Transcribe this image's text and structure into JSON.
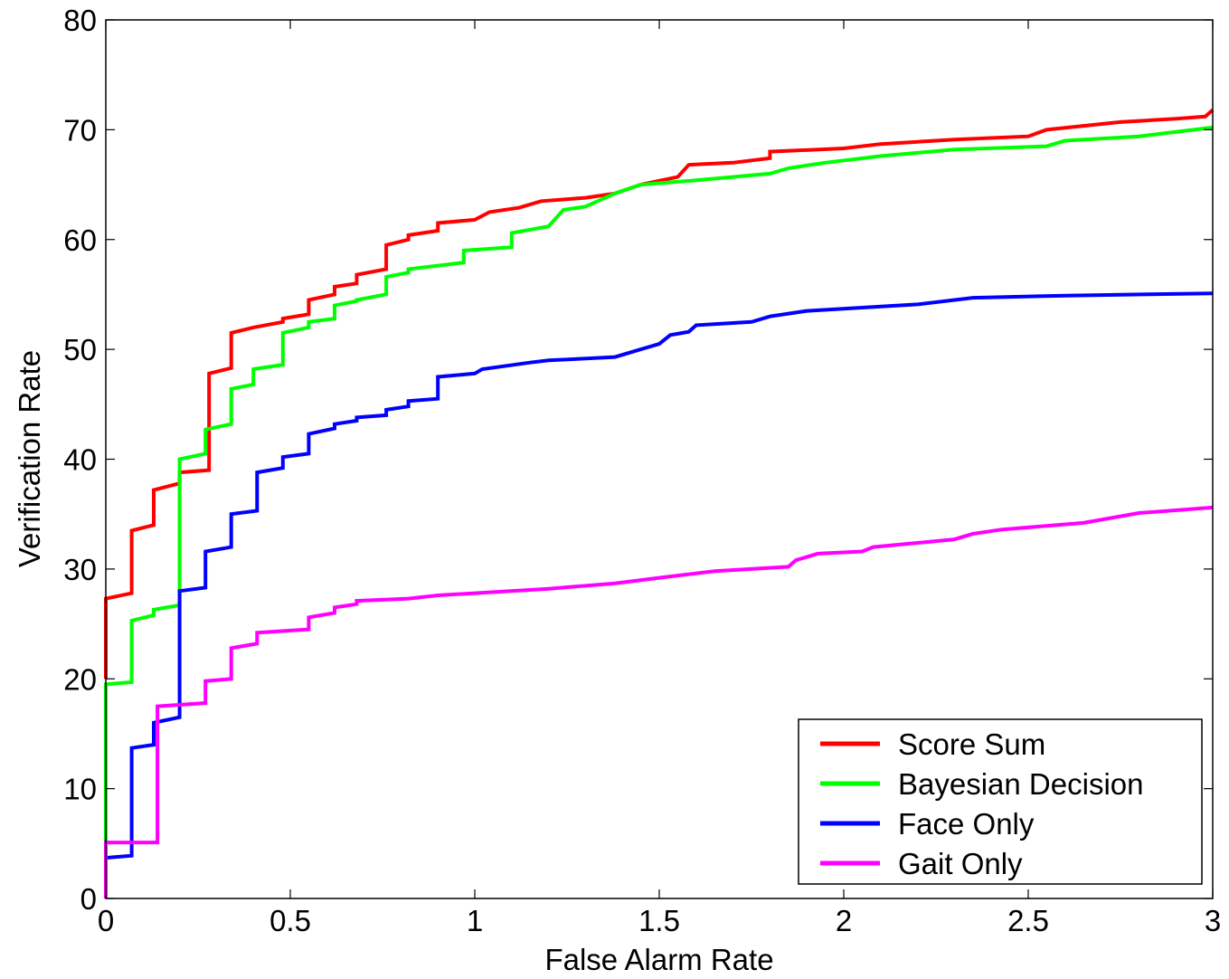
{
  "chart_data": {
    "type": "line",
    "title": "",
    "xlabel": "False Alarm Rate",
    "ylabel": "Verification Rate",
    "xlim": [
      0,
      3
    ],
    "ylim": [
      0,
      80
    ],
    "xticks": [
      0,
      0.5,
      1,
      1.5,
      2,
      2.5,
      3
    ],
    "xtick_labels": [
      "0",
      "0.5",
      "1",
      "1.5",
      "2",
      "2.5",
      "3"
    ],
    "yticks": [
      0,
      10,
      20,
      30,
      40,
      50,
      60,
      70,
      80
    ],
    "ytick_labels": [
      "0",
      "10",
      "20",
      "30",
      "40",
      "50",
      "60",
      "70",
      "80"
    ],
    "grid": false,
    "legend_position": "bottom-right",
    "series": [
      {
        "name": "Score Sum",
        "color": "#ff0000",
        "points": [
          [
            0,
            20
          ],
          [
            0,
            27.3
          ],
          [
            0.07,
            27.8
          ],
          [
            0.07,
            33.5
          ],
          [
            0.13,
            34
          ],
          [
            0.13,
            37.2
          ],
          [
            0.2,
            37.8
          ],
          [
            0.2,
            38.8
          ],
          [
            0.28,
            39
          ],
          [
            0.28,
            47.8
          ],
          [
            0.34,
            48.3
          ],
          [
            0.34,
            51.5
          ],
          [
            0.4,
            52
          ],
          [
            0.48,
            52.5
          ],
          [
            0.48,
            52.8
          ],
          [
            0.55,
            53.2
          ],
          [
            0.55,
            54.5
          ],
          [
            0.62,
            55
          ],
          [
            0.62,
            55.7
          ],
          [
            0.68,
            56
          ],
          [
            0.68,
            56.8
          ],
          [
            0.76,
            57.3
          ],
          [
            0.76,
            59.5
          ],
          [
            0.82,
            60
          ],
          [
            0.82,
            60.4
          ],
          [
            0.9,
            60.8
          ],
          [
            0.9,
            61.5
          ],
          [
            1.0,
            61.8
          ],
          [
            1.04,
            62.5
          ],
          [
            1.12,
            62.9
          ],
          [
            1.18,
            63.5
          ],
          [
            1.3,
            63.8
          ],
          [
            1.38,
            64.2
          ],
          [
            1.45,
            65
          ],
          [
            1.55,
            65.7
          ],
          [
            1.58,
            66.8
          ],
          [
            1.7,
            67
          ],
          [
            1.8,
            67.4
          ],
          [
            1.8,
            68
          ],
          [
            2.0,
            68.3
          ],
          [
            2.1,
            68.7
          ],
          [
            2.3,
            69.1
          ],
          [
            2.5,
            69.4
          ],
          [
            2.55,
            70
          ],
          [
            2.75,
            70.7
          ],
          [
            2.9,
            71
          ],
          [
            2.98,
            71.2
          ],
          [
            3.0,
            71.8
          ]
        ]
      },
      {
        "name": "Bayesian Decision",
        "color": "#00ff00",
        "points": [
          [
            0,
            5
          ],
          [
            0,
            19.5
          ],
          [
            0.07,
            19.7
          ],
          [
            0.07,
            25.3
          ],
          [
            0.13,
            25.8
          ],
          [
            0.13,
            26.3
          ],
          [
            0.2,
            26.7
          ],
          [
            0.2,
            40
          ],
          [
            0.27,
            40.5
          ],
          [
            0.27,
            42.7
          ],
          [
            0.34,
            43.2
          ],
          [
            0.34,
            46.4
          ],
          [
            0.4,
            46.8
          ],
          [
            0.4,
            48.2
          ],
          [
            0.48,
            48.6
          ],
          [
            0.48,
            51.5
          ],
          [
            0.55,
            52
          ],
          [
            0.55,
            52.5
          ],
          [
            0.62,
            52.8
          ],
          [
            0.62,
            54
          ],
          [
            0.68,
            54.4
          ],
          [
            0.68,
            54.5
          ],
          [
            0.76,
            55
          ],
          [
            0.76,
            56.6
          ],
          [
            0.82,
            57
          ],
          [
            0.82,
            57.3
          ],
          [
            0.97,
            57.9
          ],
          [
            0.97,
            59
          ],
          [
            1.1,
            59.3
          ],
          [
            1.1,
            60.6
          ],
          [
            1.2,
            61.2
          ],
          [
            1.24,
            62.7
          ],
          [
            1.3,
            63
          ],
          [
            1.38,
            64.2
          ],
          [
            1.45,
            65
          ],
          [
            1.6,
            65.4
          ],
          [
            1.8,
            66
          ],
          [
            1.85,
            66.5
          ],
          [
            1.95,
            67
          ],
          [
            2.1,
            67.6
          ],
          [
            2.3,
            68.2
          ],
          [
            2.55,
            68.5
          ],
          [
            2.6,
            69
          ],
          [
            2.8,
            69.4
          ],
          [
            3.0,
            70.2
          ]
        ]
      },
      {
        "name": "Face Only",
        "color": "#0000ff",
        "points": [
          [
            0,
            3.7
          ],
          [
            0.07,
            3.9
          ],
          [
            0.07,
            13.7
          ],
          [
            0.13,
            14
          ],
          [
            0.13,
            16
          ],
          [
            0.2,
            16.5
          ],
          [
            0.2,
            28
          ],
          [
            0.27,
            28.3
          ],
          [
            0.27,
            31.6
          ],
          [
            0.34,
            32
          ],
          [
            0.34,
            35
          ],
          [
            0.41,
            35.3
          ],
          [
            0.41,
            38.8
          ],
          [
            0.48,
            39.2
          ],
          [
            0.48,
            40.2
          ],
          [
            0.55,
            40.5
          ],
          [
            0.55,
            42.3
          ],
          [
            0.62,
            42.8
          ],
          [
            0.62,
            43.2
          ],
          [
            0.68,
            43.5
          ],
          [
            0.68,
            43.8
          ],
          [
            0.76,
            44
          ],
          [
            0.76,
            44.5
          ],
          [
            0.82,
            44.8
          ],
          [
            0.82,
            45.3
          ],
          [
            0.9,
            45.5
          ],
          [
            0.9,
            47.5
          ],
          [
            1.0,
            47.8
          ],
          [
            1.02,
            48.2
          ],
          [
            1.15,
            48.8
          ],
          [
            1.2,
            49
          ],
          [
            1.38,
            49.3
          ],
          [
            1.45,
            50
          ],
          [
            1.5,
            50.5
          ],
          [
            1.53,
            51.3
          ],
          [
            1.58,
            51.6
          ],
          [
            1.6,
            52.2
          ],
          [
            1.75,
            52.5
          ],
          [
            1.8,
            53
          ],
          [
            1.9,
            53.5
          ],
          [
            2.05,
            53.8
          ],
          [
            2.2,
            54.1
          ],
          [
            2.35,
            54.7
          ],
          [
            2.6,
            54.9
          ],
          [
            3.0,
            55.1
          ]
        ]
      },
      {
        "name": "Gait Only",
        "color": "#ff00ff",
        "points": [
          [
            0,
            0
          ],
          [
            0,
            5.1
          ],
          [
            0.14,
            5.1
          ],
          [
            0.14,
            17.5
          ],
          [
            0.27,
            17.8
          ],
          [
            0.27,
            19.8
          ],
          [
            0.34,
            20
          ],
          [
            0.34,
            22.8
          ],
          [
            0.41,
            23.2
          ],
          [
            0.41,
            24.2
          ],
          [
            0.55,
            24.5
          ],
          [
            0.55,
            25.6
          ],
          [
            0.62,
            26
          ],
          [
            0.62,
            26.5
          ],
          [
            0.68,
            26.8
          ],
          [
            0.68,
            27.1
          ],
          [
            0.82,
            27.3
          ],
          [
            0.9,
            27.6
          ],
          [
            1.0,
            27.8
          ],
          [
            1.2,
            28.2
          ],
          [
            1.38,
            28.7
          ],
          [
            1.5,
            29.2
          ],
          [
            1.65,
            29.8
          ],
          [
            1.85,
            30.2
          ],
          [
            1.87,
            30.8
          ],
          [
            1.93,
            31.4
          ],
          [
            2.05,
            31.6
          ],
          [
            2.08,
            32
          ],
          [
            2.3,
            32.7
          ],
          [
            2.35,
            33.2
          ],
          [
            2.43,
            33.6
          ],
          [
            2.65,
            34.2
          ],
          [
            2.8,
            35.1
          ],
          [
            3.0,
            35.6
          ]
        ]
      }
    ]
  }
}
